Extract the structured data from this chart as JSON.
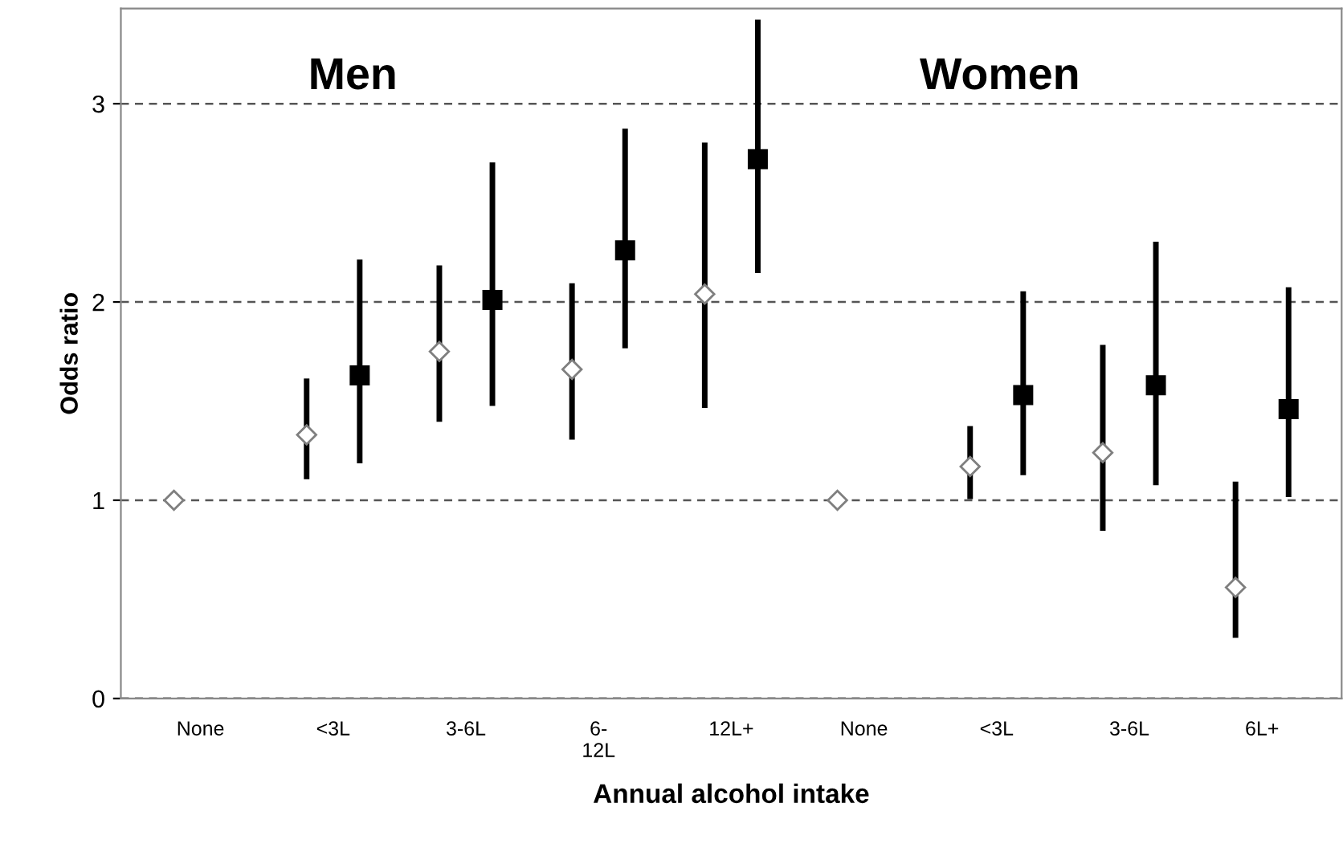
{
  "chart_data": {
    "type": "scatter",
    "categories": [
      "None",
      "<3L",
      "3-6L",
      "6-\n12L",
      "12L+",
      "None",
      "<3L",
      "3-6L",
      "6L+"
    ],
    "series": [
      {
        "color": "#7f7f7f",
        "marker": "diamond",
        "values": [
          1.0,
          1.33,
          1.75,
          1.66,
          2.04,
          1.0,
          1.17,
          1.24,
          0.56
        ],
        "errors": [
          null,
          [
            1.12,
            1.6
          ],
          [
            1.41,
            2.17
          ],
          [
            1.32,
            2.08
          ],
          [
            1.48,
            2.79
          ],
          null,
          [
            1.02,
            1.36
          ],
          [
            0.86,
            1.77
          ],
          [
            0.32,
            1.08
          ]
        ]
      },
      {
        "color": "#000000",
        "marker": "square",
        "values": [
          null,
          1.63,
          2.01,
          2.26,
          2.72,
          null,
          1.53,
          1.58,
          1.46
        ],
        "errors": [
          null,
          [
            1.2,
            2.2
          ],
          [
            1.49,
            2.69
          ],
          [
            1.78,
            2.86
          ],
          [
            2.16,
            3.41
          ],
          null,
          [
            1.14,
            2.04
          ],
          [
            1.09,
            2.29
          ],
          [
            1.03,
            2.06
          ]
        ]
      }
    ],
    "ylim": [
      0,
      3.48
    ],
    "yticks": [
      0,
      1,
      2,
      3
    ],
    "grid": "y",
    "xlabel": "Annual alcohol intake",
    "ylabel": "Odds ratio",
    "annotations": [
      "Men",
      "Women"
    ]
  }
}
